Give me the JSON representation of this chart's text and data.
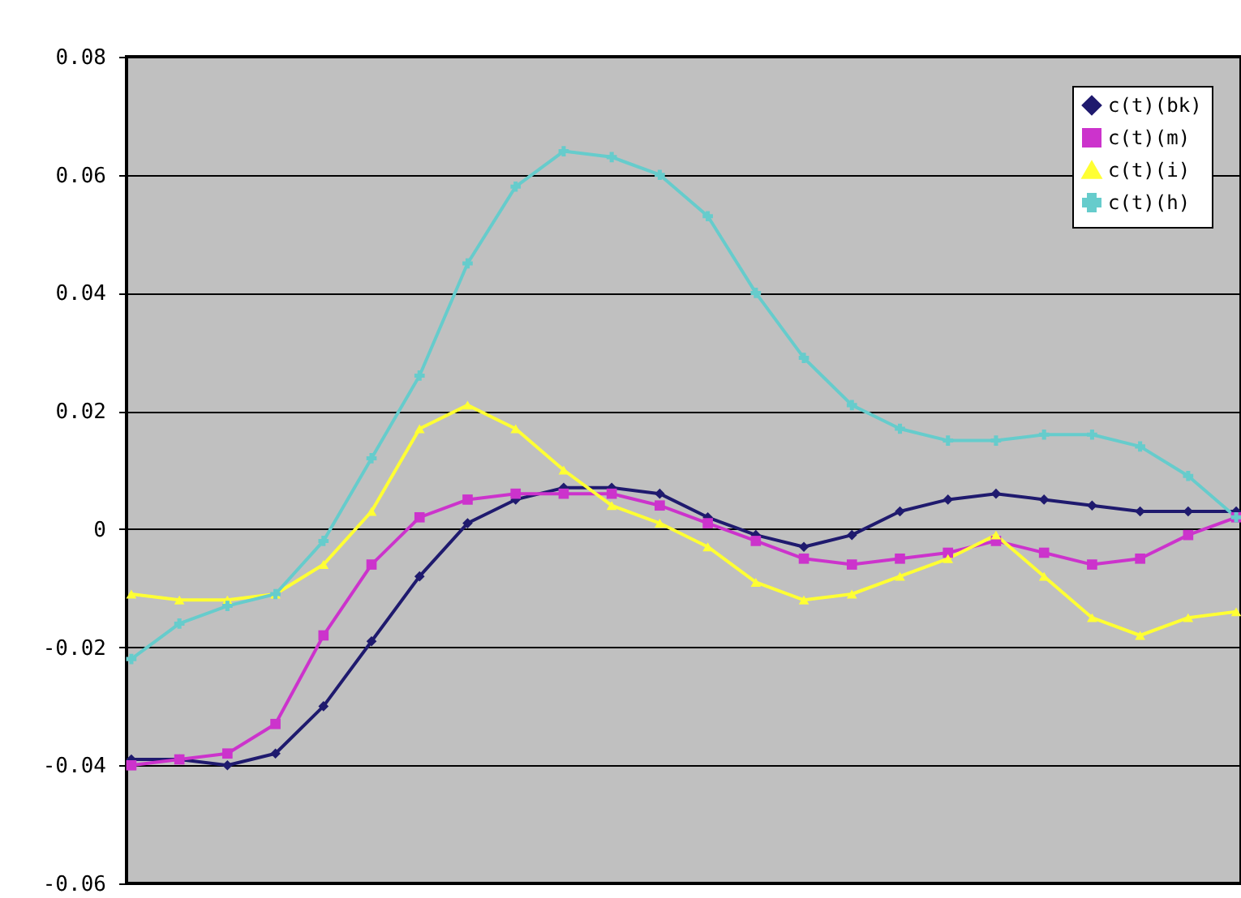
{
  "chart_data": {
    "type": "line",
    "categories": [
      null,
      null,
      null,
      null,
      null,
      null,
      null,
      null,
      null,
      null,
      null,
      null,
      null,
      null,
      null,
      null,
      null,
      null,
      null,
      null,
      null,
      null,
      null,
      null
    ],
    "series": [
      {
        "name": "c(t)(bk)",
        "color": "#1f1a6e",
        "marker": "diamond",
        "values": [
          -0.039,
          -0.039,
          -0.04,
          -0.038,
          -0.03,
          -0.019,
          -0.008,
          0.001,
          0.005,
          0.007,
          0.007,
          0.006,
          0.002,
          -0.001,
          -0.003,
          -0.001,
          0.003,
          0.005,
          0.006,
          0.005,
          0.004,
          0.003,
          0.003,
          0.003
        ]
      },
      {
        "name": "c(t)(m)",
        "color": "#cc33cc",
        "marker": "square",
        "values": [
          -0.04,
          -0.039,
          -0.038,
          -0.033,
          -0.018,
          -0.006,
          0.002,
          0.005,
          0.006,
          0.006,
          0.006,
          0.004,
          0.001,
          -0.002,
          -0.005,
          -0.006,
          -0.005,
          -0.004,
          -0.002,
          -0.004,
          -0.006,
          -0.005,
          -0.001,
          0.002
        ]
      },
      {
        "name": "c(t)(i)",
        "color": "#ffff33",
        "marker": "triangle",
        "values": [
          -0.011,
          -0.012,
          -0.012,
          -0.011,
          -0.006,
          0.003,
          0.017,
          0.021,
          0.017,
          0.01,
          0.004,
          0.001,
          -0.003,
          -0.009,
          -0.012,
          -0.011,
          -0.008,
          -0.005,
          -0.001,
          -0.008,
          -0.015,
          -0.018,
          -0.015,
          -0.014
        ]
      },
      {
        "name": "c(t)(h)",
        "color": "#66cccc",
        "marker": "cross",
        "values": [
          -0.022,
          -0.016,
          -0.013,
          -0.011,
          -0.002,
          0.012,
          0.026,
          0.045,
          0.058,
          0.064,
          0.063,
          0.06,
          0.053,
          0.04,
          0.029,
          0.021,
          0.017,
          0.015,
          0.015,
          0.016,
          0.016,
          0.014,
          0.009,
          0.002
        ]
      }
    ],
    "ylim": [
      -0.06,
      0.08
    ],
    "yticks": [
      -0.06,
      -0.04,
      -0.02,
      0,
      0.02,
      0.04,
      0.06,
      0.08
    ],
    "grid": "y",
    "legend": "top right",
    "tick_labels": "y"
  }
}
